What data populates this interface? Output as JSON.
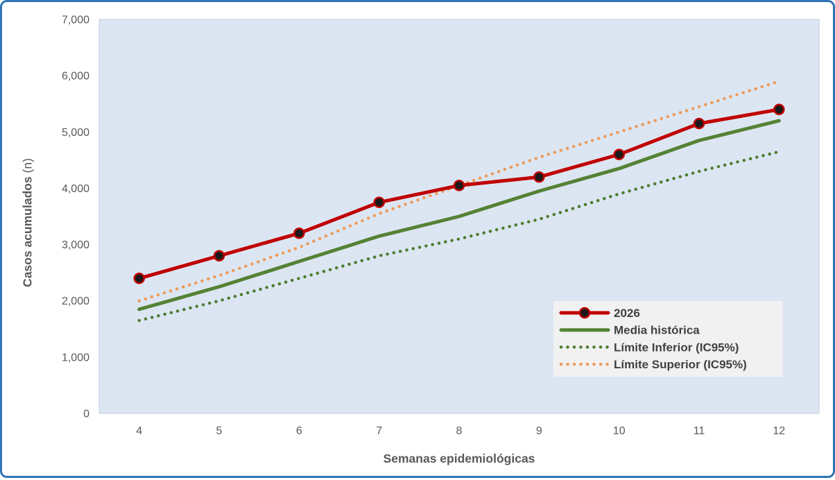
{
  "figure": {
    "border_color": "#2E75B6",
    "background": "#FFFFFF",
    "plot_background": "#DCE6F2",
    "plot_border": "#C2CEDE",
    "axis_text_color": "#595959",
    "legend_text_color": "#404040",
    "legend_background": "#F1F1F1"
  },
  "chart_data": {
    "type": "line",
    "title": "",
    "xlabel": "Semanas epidemiológicas",
    "ylabel": "Casos acumulados",
    "ylabel_suffix": "(n)",
    "x": [
      4,
      5,
      6,
      7,
      8,
      9,
      10,
      11,
      12
    ],
    "xtick_labels": [
      "4",
      "5",
      "6",
      "7",
      "8",
      "9",
      "10",
      "11",
      "12"
    ],
    "ylim": [
      0,
      7000
    ],
    "ytick_step": 1000,
    "ytick_labels": [
      "0",
      "1,000",
      "2,000",
      "3,000",
      "4,000",
      "5,000",
      "6,000",
      "7,000"
    ],
    "grid": false,
    "legend_position": "inside bottom-right",
    "series": [
      {
        "name": "2026",
        "color": "#C00000",
        "style": "solid",
        "line_width": 5,
        "marker": "circle",
        "marker_fill": "#1A1A1A",
        "values": [
          2400,
          2800,
          3200,
          3750,
          4050,
          4200,
          4600,
          5150,
          5400
        ]
      },
      {
        "name": "Media histórica",
        "color": "#548235",
        "style": "solid",
        "line_width": 5,
        "marker": "none",
        "values": [
          1850,
          2250,
          2700,
          3150,
          3500,
          3950,
          4350,
          4850,
          5200
        ]
      },
      {
        "name": "Límite Inferior (IC95%)",
        "color": "#4E7C31",
        "style": "dotted",
        "line_width": 4.5,
        "marker": "none",
        "values": [
          1650,
          2000,
          2400,
          2800,
          3100,
          3450,
          3900,
          4300,
          4650
        ]
      },
      {
        "name": "Límite Superior (IC95%)",
        "color": "#ED9B5C",
        "style": "dotted",
        "line_width": 4.5,
        "marker": "none",
        "values": [
          2000,
          2450,
          2950,
          3550,
          4050,
          4550,
          5000,
          5450,
          5900
        ]
      }
    ]
  }
}
